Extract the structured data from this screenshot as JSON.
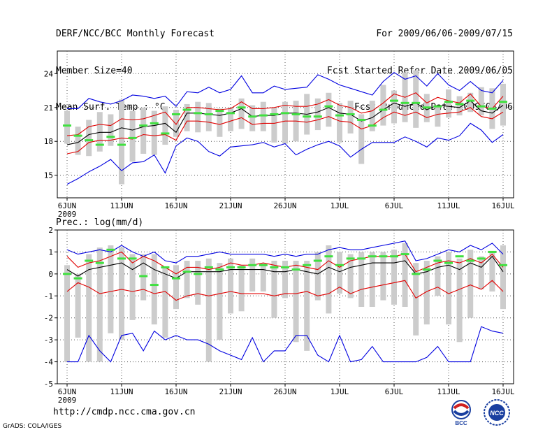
{
  "header": {
    "title": "DERF/NCC/BCC Monthly Forecast",
    "member": "Member Size=40",
    "variable": "Mean Surf. Temp.: °C",
    "period": "For 2009/06/06-2009/07/15",
    "refer": "Fcst Started Refer Date 2009/06/05",
    "produced": "Fcst Produced Date 2009/06/06"
  },
  "footer": {
    "url": "http://cmdp.ncc.cma.gov.cn",
    "grads": "GrADS: COLA/IGES",
    "logo_left": "BCC",
    "logo_right": "NCC"
  },
  "colors": {
    "mean": "#000000",
    "spread": "#e00000",
    "extreme": "#0000e0",
    "box": "#cccccc",
    "median": "#40e040"
  },
  "chart_data": [
    {
      "type": "line",
      "title": "Mean Surf. Temp.: °C",
      "xlabel": "",
      "ylabel": "°C",
      "ylim": [
        13,
        26
      ],
      "yticks": [
        15,
        18,
        21,
        24
      ],
      "xlim": [
        0,
        40
      ],
      "xtick_labels": [
        "6JUN",
        "11JUN",
        "16JUN",
        "21JUN",
        "26JUN",
        "1JUL",
        "6JUL",
        "11JUL",
        "16JUL"
      ],
      "xtick_positions": [
        0,
        5,
        10,
        15,
        20,
        25,
        30,
        35,
        40
      ],
      "year_label": "2009",
      "series": [
        {
          "name": "ensemble max",
          "color": "#0000e0",
          "values": [
            20.9,
            20.9,
            21.8,
            21.5,
            21.3,
            21.6,
            22.1,
            22.0,
            21.8,
            22.0,
            21.1,
            22.4,
            22.3,
            22.8,
            22.3,
            22.6,
            23.8,
            22.3,
            22.3,
            22.9,
            22.6,
            22.7,
            22.8,
            23.9,
            23.5,
            23.0,
            22.7,
            22.4,
            22.1,
            23.3,
            24.1,
            23.5,
            23.8,
            22.9,
            24.0,
            23.0,
            22.5,
            23.3,
            22.5,
            22.3,
            23.4
          ]
        },
        {
          "name": "mean + spread",
          "color": "#e00000",
          "values": [
            18.5,
            18.6,
            19.3,
            19.5,
            19.4,
            20.0,
            19.9,
            20.0,
            20.3,
            20.6,
            19.5,
            21.0,
            21.0,
            20.9,
            20.8,
            20.9,
            21.5,
            20.9,
            20.9,
            21.0,
            21.2,
            21.1,
            21.1,
            21.3,
            21.7,
            21.2,
            21.0,
            20.5,
            20.7,
            21.4,
            22.2,
            21.9,
            22.3,
            21.4,
            21.9,
            21.6,
            21.4,
            22.2,
            21.1,
            20.9,
            22.0
          ]
        },
        {
          "name": "ensemble mean",
          "color": "#000000",
          "values": [
            17.7,
            17.9,
            18.6,
            18.8,
            18.8,
            19.2,
            19.0,
            19.3,
            19.4,
            19.6,
            18.8,
            20.5,
            20.5,
            20.4,
            20.3,
            20.5,
            20.9,
            20.2,
            20.3,
            20.3,
            20.5,
            20.5,
            20.4,
            20.6,
            21.0,
            20.5,
            20.4,
            19.8,
            20.1,
            20.8,
            21.4,
            21.1,
            21.4,
            20.8,
            21.2,
            21.1,
            21.0,
            21.6,
            20.7,
            20.5,
            21.2
          ]
        },
        {
          "name": "mean - spread",
          "color": "#e00000",
          "values": [
            16.9,
            17.1,
            17.9,
            18.1,
            18.1,
            18.3,
            18.2,
            18.6,
            18.5,
            18.6,
            18.1,
            19.8,
            19.8,
            19.7,
            19.5,
            19.8,
            20.1,
            19.5,
            19.6,
            19.6,
            19.8,
            19.8,
            19.7,
            19.9,
            20.2,
            19.8,
            19.7,
            19.1,
            19.4,
            20.1,
            20.6,
            20.3,
            20.6,
            20.1,
            20.4,
            20.5,
            20.6,
            21.0,
            20.2,
            20.0,
            20.6
          ]
        },
        {
          "name": "ensemble min",
          "color": "#0000e0",
          "values": [
            14.2,
            14.7,
            15.3,
            15.8,
            16.4,
            15.4,
            16.1,
            16.2,
            16.8,
            15.2,
            17.6,
            18.3,
            18.0,
            17.1,
            16.7,
            17.5,
            17.6,
            17.7,
            17.9,
            17.5,
            17.8,
            16.8,
            17.3,
            17.7,
            18.0,
            17.6,
            16.6,
            17.3,
            17.9,
            17.9,
            17.9,
            18.4,
            18.0,
            17.5,
            18.3,
            18.1,
            18.5,
            19.6,
            19.0,
            17.9,
            18.6
          ]
        }
      ],
      "boxes": {
        "low": [
          17.8,
          16.8,
          16.7,
          17.1,
          17.6,
          14.2,
          16.2,
          16.9,
          16.8,
          17.7,
          18.4,
          18.9,
          18.8,
          18.9,
          18.4,
          18.9,
          19.1,
          18.9,
          18.9,
          17.9,
          17.8,
          18.0,
          18.6,
          19.0,
          19.3,
          17.9,
          18.7,
          16.0,
          18.9,
          19.4,
          19.6,
          19.7,
          19.2,
          19.7,
          19.3,
          20.1,
          20.3,
          20.6,
          20.3,
          19.1,
          19.4
        ],
        "high": [
          20.7,
          19.3,
          19.9,
          20.6,
          20.4,
          21.7,
          20.7,
          21.0,
          20.7,
          21.1,
          20.8,
          21.3,
          21.5,
          21.4,
          20.9,
          21.0,
          21.8,
          21.2,
          21.5,
          21.0,
          21.5,
          21.6,
          22.2,
          21.8,
          22.3,
          21.4,
          21.6,
          20.4,
          21.6,
          23.0,
          22.5,
          24.1,
          24.3,
          22.2,
          21.2,
          22.6,
          22.0,
          22.3,
          22.8,
          22.7,
          23.1
        ]
      },
      "medians": [
        19.4,
        18.5,
        18.1,
        17.7,
        18.4,
        17.7,
        18.3,
        19.4,
        19.6,
        18.7,
        20.4,
        20.8,
        20.5,
        20.4,
        20.7,
        20.5,
        21.0,
        20.2,
        20.3,
        20.4,
        20.5,
        20.4,
        20.2,
        20.2,
        21.1,
        20.3,
        20.4,
        19.9,
        19.4,
        20.8,
        21.6,
        21.4,
        21.4,
        21.0,
        21.1,
        21.5,
        21.3,
        21.6,
        21.1,
        20.9,
        21.5
      ]
    },
    {
      "type": "line",
      "title": "Prec.: log(mm/d)",
      "xlabel": "",
      "ylabel": "log(mm/d)",
      "ylim": [
        -5,
        2
      ],
      "yticks": [
        -5,
        -4,
        -3,
        -2,
        -1,
        0,
        1,
        2
      ],
      "xlim": [
        0,
        40
      ],
      "xtick_labels": [
        "6JUN",
        "11JUN",
        "16JUN",
        "21JUN",
        "26JUN",
        "1JUL",
        "6JUL",
        "11JUL",
        "16JUL"
      ],
      "xtick_positions": [
        0,
        5,
        10,
        15,
        20,
        25,
        30,
        35,
        40
      ],
      "year_label": "2009",
      "series": [
        {
          "name": "ensemble max",
          "color": "#0000e0",
          "values": [
            1.1,
            0.9,
            1.0,
            1.1,
            1.0,
            1.3,
            1.0,
            0.8,
            1.0,
            0.6,
            0.5,
            0.8,
            0.8,
            0.9,
            1.0,
            0.9,
            0.9,
            0.9,
            0.9,
            0.8,
            0.9,
            0.8,
            0.9,
            0.9,
            1.1,
            1.2,
            1.1,
            1.1,
            1.2,
            1.3,
            1.4,
            1.5,
            0.6,
            0.7,
            0.9,
            1.1,
            1.0,
            1.3,
            1.1,
            1.4,
            0.9
          ]
        },
        {
          "name": "mean + spread",
          "color": "#e00000",
          "values": [
            0.8,
            0.3,
            0.5,
            0.6,
            0.8,
            1.0,
            0.5,
            0.8,
            0.6,
            0.3,
            0.0,
            0.3,
            0.3,
            0.2,
            0.3,
            0.5,
            0.4,
            0.4,
            0.5,
            0.4,
            0.3,
            0.4,
            0.3,
            0.2,
            0.6,
            0.3,
            0.6,
            0.7,
            0.8,
            0.8,
            0.8,
            0.9,
            0.1,
            0.3,
            0.5,
            0.6,
            0.5,
            0.7,
            0.5,
            0.9,
            0.3
          ]
        },
        {
          "name": "ensemble mean",
          "color": "#000000",
          "values": [
            0.2,
            -0.1,
            0.2,
            0.3,
            0.4,
            0.5,
            0.2,
            0.5,
            0.2,
            0.0,
            -0.2,
            0.1,
            0.1,
            0.1,
            0.1,
            0.2,
            0.2,
            0.2,
            0.2,
            0.1,
            0.1,
            0.2,
            0.1,
            0.0,
            0.3,
            0.1,
            0.3,
            0.4,
            0.5,
            0.5,
            0.5,
            0.6,
            0.0,
            0.1,
            0.3,
            0.4,
            0.2,
            0.5,
            0.3,
            0.8,
            0.1
          ]
        },
        {
          "name": "mean - spread",
          "color": "#e00000",
          "values": [
            -0.8,
            -0.4,
            -0.6,
            -0.9,
            -0.8,
            -0.7,
            -0.8,
            -0.7,
            -0.9,
            -0.8,
            -1.2,
            -1.0,
            -0.9,
            -1.0,
            -0.9,
            -0.8,
            -0.9,
            -0.9,
            -0.9,
            -1.0,
            -0.9,
            -0.9,
            -0.8,
            -1.0,
            -0.9,
            -0.6,
            -0.9,
            -0.7,
            -0.6,
            -0.5,
            -0.4,
            -0.3,
            -1.1,
            -0.8,
            -0.6,
            -0.9,
            -0.7,
            -0.5,
            -0.7,
            -0.3,
            -0.8
          ]
        },
        {
          "name": "ensemble min",
          "color": "#0000e0",
          "values": [
            -4.0,
            -4.0,
            -2.8,
            -3.5,
            -4.0,
            -2.8,
            -2.7,
            -3.5,
            -2.6,
            -3.0,
            -2.8,
            -3.0,
            -3.0,
            -3.2,
            -3.5,
            -3.7,
            -3.9,
            -2.9,
            -4.0,
            -3.5,
            -3.5,
            -2.8,
            -2.8,
            -3.7,
            -4.0,
            -2.8,
            -4.0,
            -3.9,
            -3.3,
            -4.0,
            -4.0,
            -4.0,
            -4.0,
            -3.8,
            -3.3,
            -4.0,
            -4.0,
            -4.0,
            -2.4,
            -2.6,
            -2.7
          ]
        }
      ],
      "boxes": {
        "low": [
          -4.0,
          -2.9,
          -4.0,
          -4.0,
          -2.7,
          -3.0,
          -2.1,
          -1.2,
          -2.3,
          -2.9,
          -1.6,
          -1.1,
          -1.4,
          -4.0,
          -3.0,
          -1.8,
          -1.7,
          -0.8,
          -0.8,
          -2.0,
          -1.1,
          -3.1,
          -3.5,
          -1.2,
          -1.8,
          -0.9,
          -1.1,
          -1.5,
          -1.5,
          -1.2,
          -1.4,
          -1.5,
          -2.8,
          -2.3,
          -1.0,
          -2.3,
          -3.1,
          -2.0,
          -0.7,
          -0.8,
          -1.6
        ],
        "high": [
          0.4,
          0.0,
          0.9,
          1.2,
          1.3,
          1.2,
          0.9,
          0.9,
          0.9,
          0.3,
          0.4,
          0.6,
          0.6,
          0.7,
          0.5,
          0.7,
          0.4,
          0.7,
          0.5,
          0.6,
          0.6,
          0.6,
          0.6,
          1.0,
          1.3,
          1.0,
          0.9,
          1.0,
          1.0,
          1.0,
          1.1,
          1.4,
          0.5,
          0.6,
          0.8,
          1.0,
          0.7,
          1.1,
          0.8,
          1.0,
          1.3
        ]
      },
      "medians": [
        0.0,
        -0.2,
        0.6,
        0.5,
        1.1,
        0.7,
        0.7,
        -0.1,
        -0.5,
        0.3,
        -0.2,
        0.1,
        0.0,
        0.3,
        0.2,
        0.3,
        0.3,
        0.4,
        0.4,
        0.3,
        0.3,
        0.2,
        0.4,
        0.6,
        0.8,
        0.4,
        0.7,
        0.7,
        0.8,
        0.8,
        0.8,
        0.9,
        0.0,
        0.2,
        0.6,
        0.5,
        0.8,
        0.6,
        0.7,
        1.0,
        0.4
      ]
    }
  ]
}
